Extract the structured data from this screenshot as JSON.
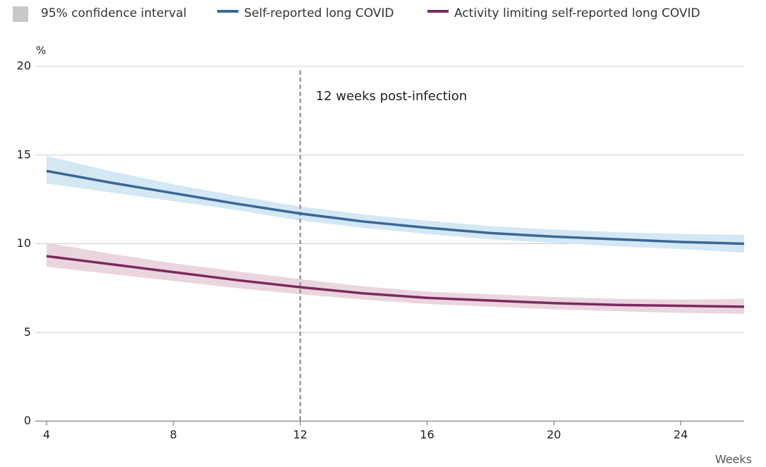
{
  "chart_data": {
    "type": "line",
    "y_unit": "%",
    "x_label": "Weeks",
    "band_label": "95% confidence interval",
    "band_legend_color": "#c8c8c8",
    "x": [
      4,
      6,
      8,
      10,
      12,
      14,
      16,
      18,
      20,
      22,
      24,
      26
    ],
    "series": [
      {
        "name": "Self-reported long COVID",
        "color": "#3a6796",
        "band_color": "#d3e7f4",
        "values": [
          14.1,
          13.45,
          12.85,
          12.25,
          11.7,
          11.25,
          10.9,
          10.6,
          10.4,
          10.25,
          10.1,
          10.0
        ],
        "lower": [
          13.4,
          12.9,
          12.4,
          11.9,
          11.3,
          10.9,
          10.55,
          10.25,
          10.05,
          9.85,
          9.7,
          9.5
        ],
        "upper": [
          14.95,
          14.1,
          13.35,
          12.7,
          12.1,
          11.65,
          11.3,
          11.0,
          10.8,
          10.65,
          10.55,
          10.5
        ]
      },
      {
        "name": "Activity limiting self-reported long COVID",
        "color": "#7b2a5d",
        "band_color": "#ead5df",
        "values": [
          9.3,
          8.85,
          8.4,
          7.95,
          7.55,
          7.2,
          6.95,
          6.8,
          6.65,
          6.55,
          6.5,
          6.45
        ],
        "lower": [
          8.7,
          8.3,
          7.9,
          7.5,
          7.15,
          6.85,
          6.6,
          6.45,
          6.3,
          6.2,
          6.1,
          6.05
        ],
        "upper": [
          10.05,
          9.45,
          8.9,
          8.45,
          8.0,
          7.6,
          7.3,
          7.15,
          7.0,
          6.9,
          6.85,
          6.9
        ]
      }
    ],
    "annotation": {
      "text": "12 weeks post-infection",
      "x": 12
    },
    "xlim": [
      4,
      26
    ],
    "xticks": [
      4,
      8,
      12,
      16,
      20,
      24
    ],
    "ylim": [
      0,
      20
    ],
    "yticks": [
      0,
      5,
      10,
      15,
      20
    ],
    "grid": true
  }
}
